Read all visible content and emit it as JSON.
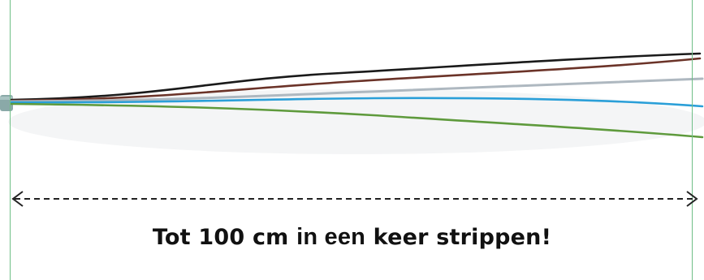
{
  "caption": {
    "part1": "Tot 100 cm ",
    "part2": "in een",
    "part3": " keer strippen!"
  },
  "colors": {
    "guide_lines": "#6fbf86",
    "sheath": "#8aa9a8",
    "wire_black": "#1a1a1a",
    "wire_brown": "#6b3328",
    "wire_grey": "#aeb8c0",
    "wire_blue": "#2a9fd8",
    "wire_green": "#5e9a3c",
    "dimension_arrow": "#222222"
  },
  "icons": {
    "dimension": "double-headed-dashed-arrow"
  }
}
